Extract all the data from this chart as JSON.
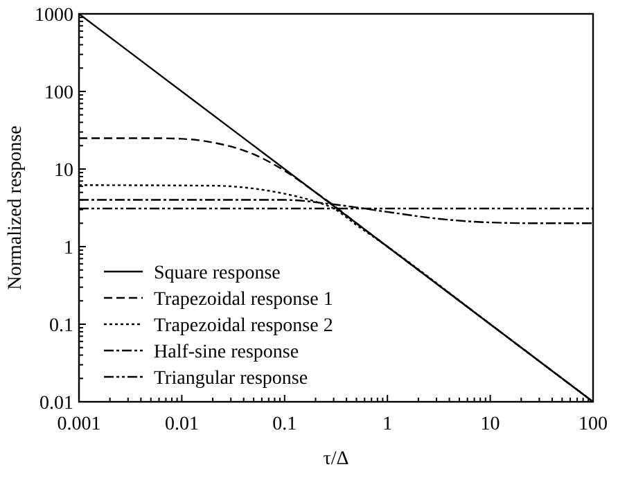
{
  "chart_data": {
    "type": "line",
    "xlabel": "τ/Δ",
    "ylabel": "Normalized response",
    "log": "xy",
    "xlim": [
      0.001,
      100
    ],
    "ylim": [
      0.01,
      1000
    ],
    "xticks": [
      0.001,
      0.01,
      0.1,
      1,
      10,
      100
    ],
    "yticks": [
      0.01,
      0.1,
      1,
      10,
      100,
      1000
    ],
    "grid": false,
    "legend": "left",
    "series": [
      {
        "name": "Square response",
        "color": "#000000",
        "line_style": "solid",
        "x": [
          0.001,
          0.01,
          0.1,
          1,
          10,
          100
        ],
        "values": [
          1000,
          100,
          10,
          1,
          0.1,
          0.01
        ]
      },
      {
        "name": "Trapezoidal response 1",
        "color": "#000000",
        "line_style": "dashed",
        "x": [
          0.001,
          0.005,
          0.01,
          0.02,
          0.05,
          0.1,
          0.2,
          0.3,
          0.5,
          1,
          10,
          100
        ],
        "values": [
          25,
          25,
          24.5,
          22,
          15.5,
          9.5,
          5,
          3.4,
          2,
          1,
          0.1,
          0.01
        ]
      },
      {
        "name": "Trapezoidal response 2",
        "color": "#000000",
        "line_style": "dotted",
        "x": [
          0.001,
          0.02,
          0.05,
          0.1,
          0.2,
          0.3,
          0.5,
          1,
          10,
          100
        ],
        "values": [
          6.2,
          6.1,
          5.6,
          4.8,
          3.8,
          3.1,
          1.9,
          1,
          0.1,
          0.01
        ]
      },
      {
        "name": "Half-sine response",
        "color": "#000000",
        "line_style": "dashdot",
        "x": [
          0.001,
          0.1,
          0.3,
          1,
          3,
          10,
          30,
          100
        ],
        "values": [
          4,
          4,
          3.5,
          2.8,
          2.3,
          2.05,
          2,
          2
        ]
      },
      {
        "name": "Triangular response",
        "color": "#000000",
        "line_style": "dashdotdot",
        "x": [
          0.001,
          100
        ],
        "values": [
          3.1,
          3.1
        ]
      }
    ]
  }
}
